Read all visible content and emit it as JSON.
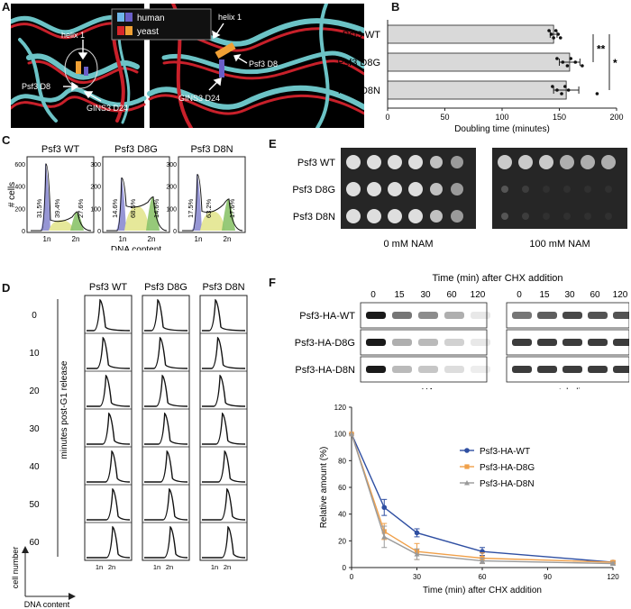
{
  "panels": {
    "A": {
      "label": "A",
      "legend": {
        "human": "human",
        "yeast": "yeast"
      },
      "colors": {
        "human_light": "#6fb6e8",
        "human_dark": "#6a5fc8",
        "yeast_light": "#d8262a",
        "yeast_dark": "#f0a035",
        "background": "#000000",
        "ribbon_cyan": "#6cc3c6",
        "ribbon_red": "#c8202a"
      },
      "left": {
        "helix": "helix 1",
        "psf3": "Psf3 D8",
        "gins3": "GINS3 D24"
      },
      "right": {
        "helix": "helix 1",
        "psf3": "Psf3 D8",
        "gins3": "GINS3 D24"
      }
    },
    "B": {
      "label": "B",
      "significance": {
        "d8g": "**",
        "d8n": "*"
      }
    },
    "C": {
      "label": "C",
      "ylabel": "# cells",
      "xlabel": "DNA content",
      "y_ticks_first": [
        "600",
        "400",
        "200",
        "0"
      ],
      "y_ticks_other": [
        "300",
        "200",
        "100",
        "0"
      ],
      "x_ticks": [
        "1n",
        "2n"
      ],
      "plots": [
        {
          "title": "Psf3 WT",
          "g1": "31.5%",
          "s": "39.4%",
          "g2": "27.6%"
        },
        {
          "title": "Psf3 D8G",
          "g1": "14.6%",
          "s": "68.5%",
          "g2": "14.6%"
        },
        {
          "title": "Psf3 D8N",
          "g1": "17.5%",
          "s": "63.2%",
          "g2": "17.6%"
        }
      ]
    },
    "D": {
      "label": "D",
      "columns": [
        "Psf3 WT",
        "Psf3 D8G",
        "Psf3 D8N"
      ],
      "timepoints": [
        "0",
        "10",
        "20",
        "30",
        "40",
        "50",
        "60"
      ],
      "side_label": "minutes post-G1 release",
      "y_axis": "cell number",
      "x_axis": "DNA content",
      "x_ticks": [
        "1n",
        "2n"
      ]
    },
    "E": {
      "label": "E",
      "strains": [
        "Psf3 WT",
        "Psf3 D8G",
        "Psf3 D8N"
      ],
      "conditions": [
        "0 mM NAM",
        "100 mM NAM"
      ]
    },
    "F": {
      "label": "F",
      "header": "Time (min) after CHX addition",
      "time_labels": [
        "0",
        "15",
        "30",
        "60",
        "120"
      ],
      "rows": [
        "Psf3-HA-WT",
        "Psf3-HA-D8G",
        "Psf3-HA-D8N"
      ],
      "blot_labels": [
        "α-HA",
        "α-tubulin"
      ]
    }
  },
  "chart_data": [
    {
      "id": "B",
      "type": "bar",
      "orientation": "horizontal",
      "categories": [
        "Psf3 WT",
        "Psf3 D8G",
        "Psf3 D8N"
      ],
      "values": [
        145,
        159,
        156
      ],
      "errors": [
        3,
        9,
        11
      ],
      "points": [
        [
          141,
          143,
          145,
          147,
          149,
          151
        ],
        [
          148,
          153,
          157,
          160,
          164,
          170
        ],
        [
          144,
          148,
          152,
          155,
          158,
          183
        ]
      ],
      "xlabel": "Doubling time (minutes)",
      "x_ticks": [
        0,
        50,
        100,
        150,
        200
      ],
      "xlim": [
        0,
        200
      ],
      "bar_color": "#d9d9d9"
    },
    {
      "id": "F",
      "type": "line",
      "title": "",
      "xlabel": "Time (min) after CHX addition",
      "ylabel": "Relative amount (%)",
      "x": [
        0,
        15,
        30,
        60,
        120
      ],
      "xlim": [
        0,
        120
      ],
      "ylim": [
        0,
        120
      ],
      "x_ticks": [
        0,
        30,
        60,
        90,
        120
      ],
      "y_ticks": [
        0,
        20,
        40,
        60,
        80,
        100,
        120
      ],
      "legend_position": "right",
      "series": [
        {
          "name": "Psf3-HA-WT",
          "color": "#2f4fa2",
          "marker": "circle",
          "values": [
            100,
            45,
            26,
            12,
            4
          ],
          "errors": [
            0,
            6,
            3,
            3,
            1
          ]
        },
        {
          "name": "Psf3-HA-D8G",
          "color": "#f0a04a",
          "marker": "square",
          "values": [
            100,
            27,
            12,
            7,
            4
          ],
          "errors": [
            0,
            6,
            6,
            4,
            1
          ]
        },
        {
          "name": "Psf3-HA-D8N",
          "color": "#9a9a9a",
          "marker": "triangle",
          "values": [
            100,
            23,
            10,
            5,
            3
          ],
          "errors": [
            0,
            8,
            4,
            2,
            1
          ]
        }
      ]
    }
  ]
}
